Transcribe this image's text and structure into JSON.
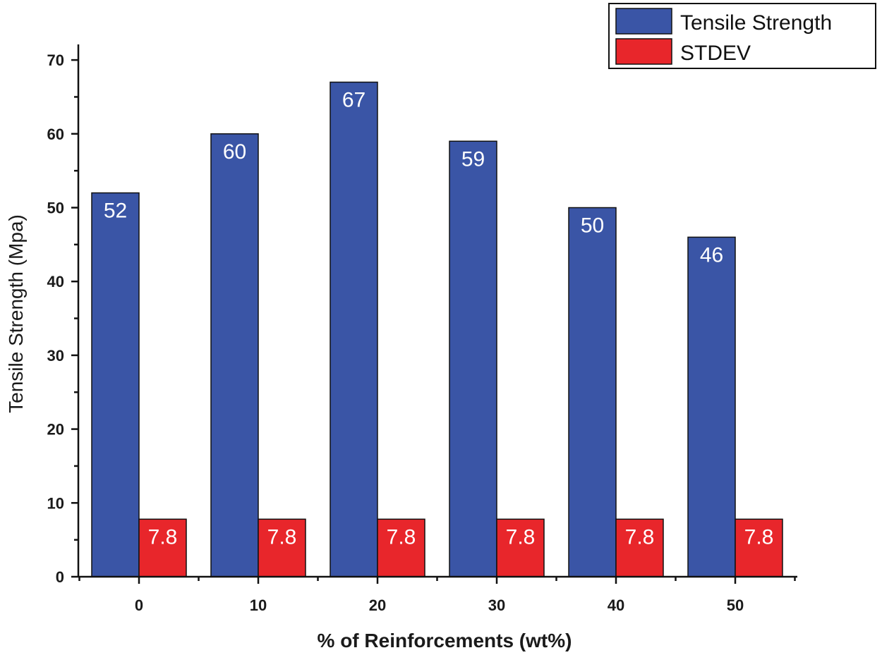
{
  "chart_data": {
    "type": "bar",
    "categories": [
      "0",
      "10",
      "20",
      "30",
      "40",
      "50"
    ],
    "series": [
      {
        "name": "Tensile Strength",
        "values": [
          52,
          60,
          67,
          59,
          50,
          46
        ],
        "labels": [
          "52",
          "60",
          "67",
          "59",
          "50",
          "46"
        ],
        "color": "#3a55a6"
      },
      {
        "name": "STDEV",
        "values": [
          7.8,
          7.8,
          7.8,
          7.8,
          7.8,
          7.8
        ],
        "labels": [
          "7.8",
          "7.8",
          "7.8",
          "7.8",
          "7.8",
          "7.8"
        ],
        "color": "#e8262b"
      }
    ],
    "title": "",
    "xlabel": "% of Reinforcements (wt%)",
    "ylabel": "Tensile Strength (Mpa)",
    "ylim": [
      0,
      72
    ],
    "yticks": [
      0,
      10,
      20,
      30,
      40,
      50,
      60,
      70
    ],
    "ytick_labels": [
      "0",
      "10",
      "20",
      "30",
      "40",
      "50",
      "60",
      "70"
    ],
    "xtick_labels": [
      "0",
      "10",
      "20",
      "30",
      "40",
      "50"
    ],
    "grid": false,
    "legend_position": "top-right"
  }
}
